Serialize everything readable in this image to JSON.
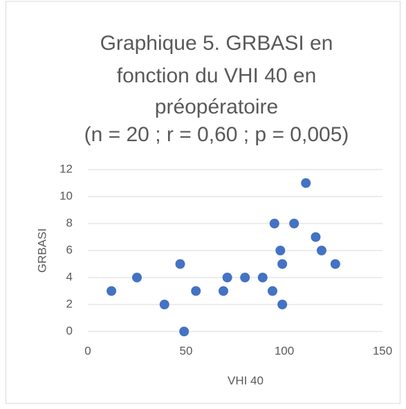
{
  "chart_data": {
    "type": "scatter",
    "title": [
      "Graphique 5. GRBASI en",
      "fonction du VHI 40 en",
      "préopératoire",
      "(n = 20 ; r = 0,60 ; p = 0,005)"
    ],
    "x_label": "VHI 40",
    "y_label": "GRBASI",
    "series": [
      {
        "name": "GRBASI",
        "color": "#4472c4",
        "x": [
          12,
          25,
          39,
          47,
          49,
          55,
          69,
          71,
          80,
          89,
          94,
          95,
          98,
          99,
          105,
          99,
          111,
          116,
          119,
          126
        ],
        "values": [
          3,
          4,
          2,
          5,
          0,
          3,
          3,
          4,
          4,
          4,
          3,
          8,
          6,
          5,
          8,
          2,
          11,
          7,
          6,
          5
        ]
      }
    ],
    "xlim": [
      0,
      150
    ],
    "xticks": [
      0,
      50,
      100,
      150
    ],
    "ylim": [
      0,
      12
    ],
    "yticks": [
      0,
      2,
      4,
      6,
      8,
      10,
      12
    ],
    "grid": true
  }
}
